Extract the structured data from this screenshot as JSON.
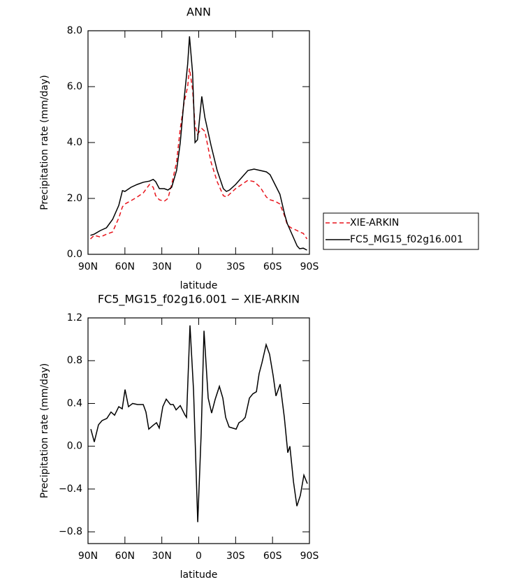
{
  "chart_data": [
    {
      "type": "line",
      "title": "ANN",
      "x_label": "latitude",
      "y_label": "Precipitation rate (mm/day)",
      "xlim": [
        90,
        -90
      ],
      "xticks": [
        {
          "value": 90,
          "label": "90N"
        },
        {
          "value": 60,
          "label": "60N"
        },
        {
          "value": 30,
          "label": "30N"
        },
        0,
        {
          "value": -30,
          "label": "30S"
        },
        {
          "value": -60,
          "label": "60S"
        },
        {
          "value": -90,
          "label": "90S"
        }
      ],
      "ylim": [
        0,
        8
      ],
      "yticks": [
        {
          "value": 0,
          "label": "0.0"
        },
        {
          "value": 2,
          "label": "2.0"
        },
        {
          "value": 4,
          "label": "4.0"
        },
        {
          "value": 6,
          "label": "6.0"
        },
        {
          "value": 8,
          "label": "8.0"
        }
      ],
      "legend": "right",
      "x": [
        88,
        85,
        80,
        75,
        70,
        65,
        62,
        60,
        55,
        50,
        45,
        40,
        37,
        35,
        32,
        28,
        25,
        22,
        18,
        15,
        12,
        9,
        7.5,
        5,
        3,
        1,
        -2.5,
        -5,
        -10,
        -15,
        -20,
        -22.5,
        -25,
        -30,
        -35,
        -40,
        -45,
        -50,
        -55,
        -58,
        -62,
        -66,
        -70,
        -72,
        -75,
        -80,
        -82,
        -85,
        -88
      ],
      "series": [
        {
          "name": "XIE-ARKIN",
          "color": "#e8141c",
          "dashed": true,
          "values": [
            0.55,
            0.68,
            0.62,
            0.72,
            0.8,
            1.3,
            1.7,
            1.8,
            1.92,
            2.05,
            2.2,
            2.5,
            2.4,
            2.1,
            1.95,
            1.9,
            2.0,
            2.5,
            3.3,
            4.5,
            5.4,
            6.0,
            6.65,
            5.9,
            4.6,
            4.3,
            4.5,
            4.4,
            3.3,
            2.6,
            2.1,
            2.05,
            2.15,
            2.35,
            2.5,
            2.65,
            2.6,
            2.4,
            2.05,
            1.95,
            1.9,
            1.8,
            1.35,
            1.05,
            0.95,
            0.85,
            0.8,
            0.75,
            0.55
          ]
        },
        {
          "name": "FC5_MG15_f02g16.001",
          "color": "#000000",
          "dashed": false,
          "values": [
            0.68,
            0.72,
            0.85,
            0.95,
            1.25,
            1.75,
            2.28,
            2.25,
            2.4,
            2.5,
            2.58,
            2.62,
            2.68,
            2.6,
            2.35,
            2.35,
            2.3,
            2.4,
            3.0,
            4.0,
            5.5,
            6.8,
            7.8,
            6.5,
            4.0,
            4.1,
            5.65,
            4.9,
            3.9,
            3.0,
            2.35,
            2.25,
            2.3,
            2.5,
            2.75,
            3.0,
            3.05,
            3.0,
            2.95,
            2.85,
            2.5,
            2.15,
            1.4,
            1.1,
            0.8,
            0.3,
            0.2,
            0.22,
            0.15
          ]
        }
      ]
    },
    {
      "type": "line",
      "title": "FC5_MG15_f02g16.001 − XIE-ARKIN",
      "x_label": "latitude",
      "y_label": "Precipitation rate (mm/day)",
      "xlim": [
        90,
        -90
      ],
      "xticks": [
        {
          "value": 90,
          "label": "90N"
        },
        {
          "value": 60,
          "label": "60N"
        },
        {
          "value": 30,
          "label": "30N"
        },
        0,
        {
          "value": -30,
          "label": "30S"
        },
        {
          "value": -60,
          "label": "60S"
        },
        {
          "value": -90,
          "label": "90S"
        }
      ],
      "ylim": [
        -0.91,
        1.2
      ],
      "yticks": [
        {
          "value": -0.8,
          "label": "−0.8"
        },
        {
          "value": -0.4,
          "label": "−0.4"
        },
        {
          "value": 0,
          "label": "0.0"
        },
        0.4,
        0.8,
        1.2
      ],
      "x": [
        87.7,
        84.9,
        81.5,
        78.6,
        74.7,
        71.3,
        68.4,
        65,
        62.2,
        59.9,
        57.1,
        53.7,
        49.7,
        45.1,
        42.9,
        40.6,
        36.6,
        34.3,
        32.1,
        29.2,
        26.4,
        23,
        20.7,
        18.4,
        15,
        11.1,
        9.9,
        7.1,
        4.2,
        0.8,
        -2,
        -4.3,
        -7.7,
        -10.5,
        -13.4,
        -16.8,
        -19.6,
        -21.9,
        -24.7,
        -30.4,
        -32.7,
        -35.5,
        -37.8,
        -41.2,
        -44,
        -46.9,
        -49.1,
        -51.4,
        -54.8,
        -57.6,
        -60.5,
        -62.8,
        -66.2,
        -69.6,
        -72.4,
        -74.1,
        -77,
        -79.8,
        -82.6,
        -85.5,
        -88.3
      ],
      "series": [
        {
          "color": "#000000",
          "dashed": false,
          "values": [
            0.16,
            0.04,
            0.2,
            0.24,
            0.26,
            0.32,
            0.29,
            0.37,
            0.35,
            0.53,
            0.37,
            0.4,
            0.39,
            0.39,
            0.32,
            0.16,
            0.2,
            0.22,
            0.17,
            0.37,
            0.44,
            0.39,
            0.39,
            0.34,
            0.38,
            0.29,
            0.27,
            1.13,
            0.52,
            -0.71,
            0.12,
            1.08,
            0.45,
            0.31,
            0.44,
            0.56,
            0.45,
            0.27,
            0.18,
            0.16,
            0.22,
            0.24,
            0.27,
            0.45,
            0.49,
            0.51,
            0.68,
            0.78,
            0.95,
            0.86,
            0.66,
            0.47,
            0.58,
            0.27,
            -0.06,
            0.0,
            -0.33,
            -0.56,
            -0.46,
            -0.27,
            -0.35
          ]
        }
      ]
    }
  ]
}
